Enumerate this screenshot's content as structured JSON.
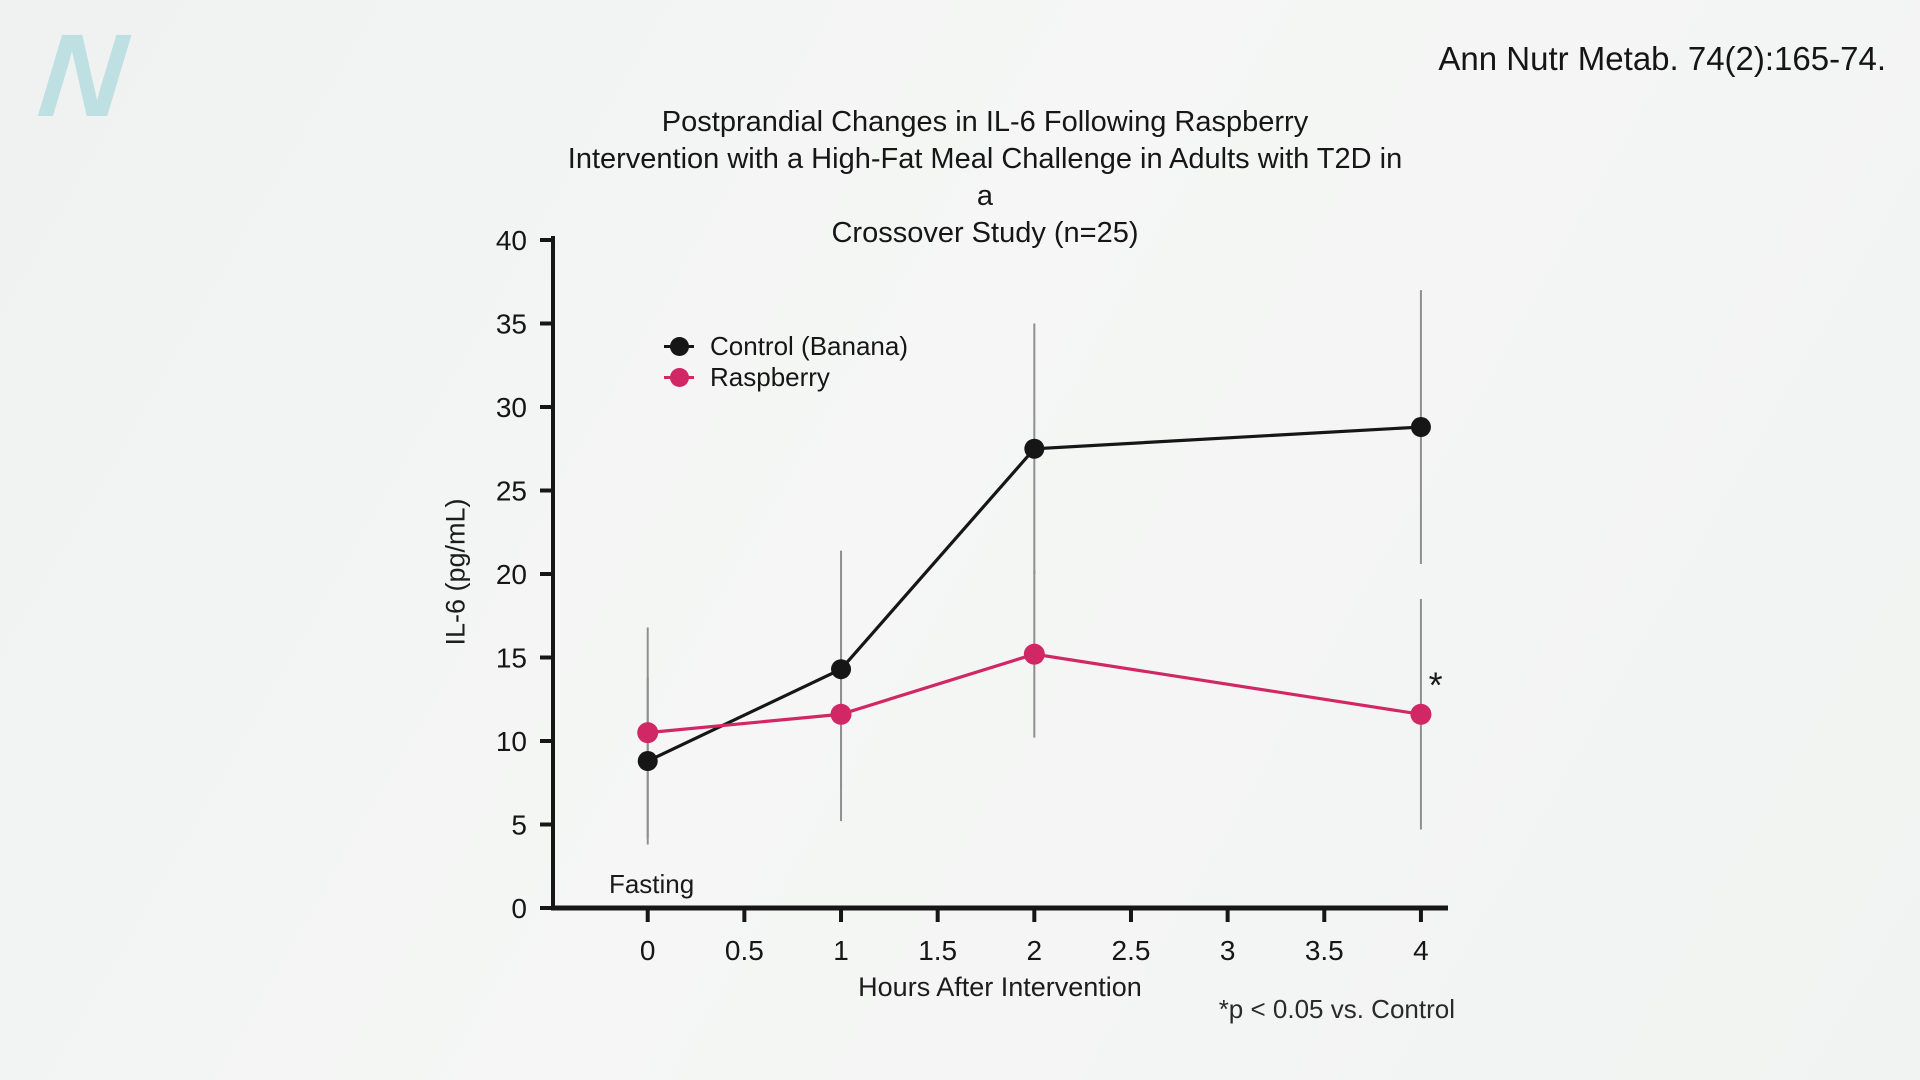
{
  "page": {
    "background": "#f2f4f3"
  },
  "header": {
    "logo_letter": "N",
    "logo_color": "#bfe0e2",
    "citation": "Ann Nutr Metab. 74(2):165-74."
  },
  "chart_data": {
    "type": "line",
    "title": "Postprandial Changes in IL-6 Following Raspberry Intervention with a High-Fat Meal Challenge in Adults with T2D in a Crossover Study (n=25)",
    "title_lines": [
      "Postprandial Changes in IL-6 Following Raspberry",
      "Intervention with a High-Fat Meal Challenge in Adults with T2D in a",
      "Crossover Study (n=25)"
    ],
    "xlabel": "Hours After Intervention",
    "ylabel": "IL-6 (pg/mL)",
    "xlim": [
      -0.49,
      4.14
    ],
    "ylim": [
      0,
      40
    ],
    "x_ticks": [
      0,
      0.5,
      1,
      1.5,
      2,
      2.5,
      3,
      3.5,
      4
    ],
    "x_tick_labels": [
      "0",
      "0.5",
      "1",
      "1.5",
      "2",
      "2.5",
      "3",
      "3.5",
      "4"
    ],
    "y_ticks": [
      0,
      5,
      10,
      15,
      20,
      25,
      30,
      35,
      40
    ],
    "grid": false,
    "legend_position": "inside-upper-left",
    "x": [
      0,
      1,
      2,
      4
    ],
    "series": [
      {
        "name": "Control (Banana)",
        "color": "#161616",
        "values": [
          8.8,
          14.3,
          27.5,
          28.8
        ],
        "errors": [
          5.0,
          7.1,
          7.5,
          8.2
        ]
      },
      {
        "name": "Raspberry",
        "color": "#d22765",
        "values": [
          10.5,
          11.6,
          15.2,
          11.6
        ],
        "errors": [
          6.3,
          6.4,
          5.0,
          6.9
        ]
      }
    ],
    "error_bar_color": "#8f8f8f",
    "axis_color": "#161616",
    "annotations": [
      {
        "name": "fasting",
        "text": "Fasting",
        "x": 0.02,
        "y": 0.9,
        "anchor": "middle"
      },
      {
        "name": "star",
        "text": "*",
        "x": 4.04,
        "y": 12.6,
        "anchor": "start"
      }
    ],
    "footnote": "*p < 0.05 vs. Control"
  }
}
